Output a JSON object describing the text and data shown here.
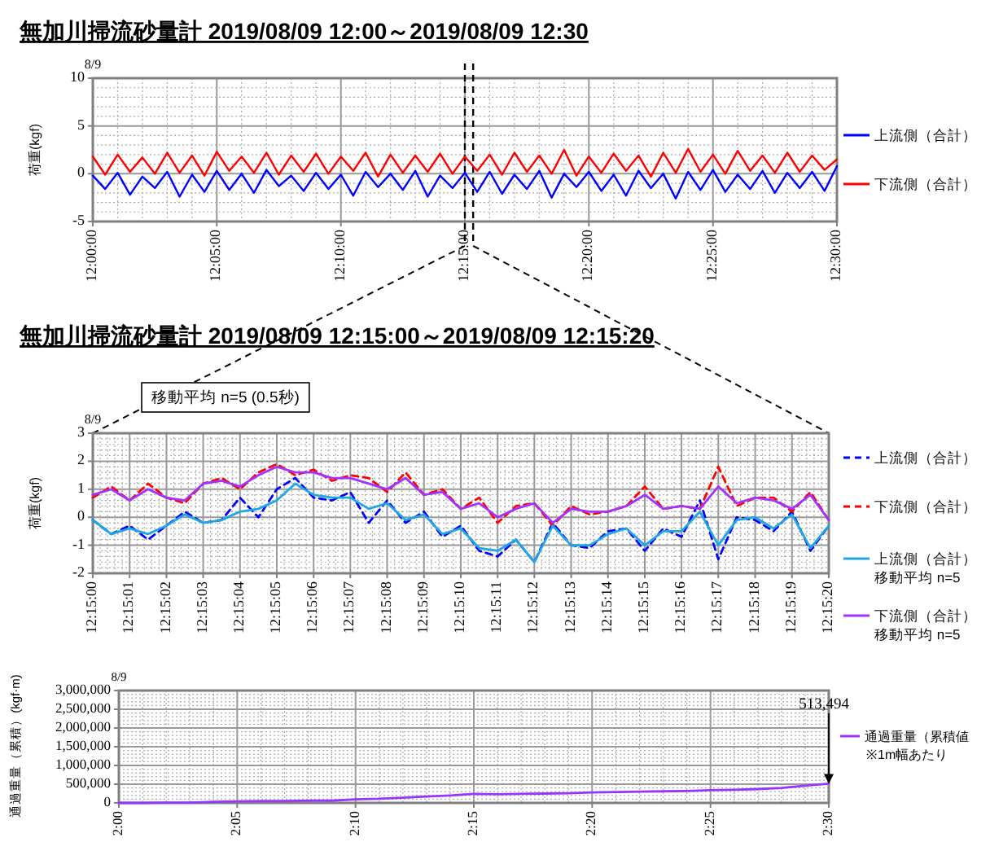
{
  "chart_data": [
    {
      "type": "line",
      "title": "無加川掃流砂量計 2019/08/09 12:00～2019/08/09 12:30",
      "ylabel": "荷重(kgf)",
      "annotations": [
        "8/9"
      ],
      "grid": true,
      "legend": "right",
      "xlim": [
        12,
        12.5
      ],
      "ylim": [
        -5,
        10
      ],
      "xticks": [
        {
          "value": 12,
          "label": "12:00:00"
        },
        {
          "value": 12.0833,
          "label": "12:05:00"
        },
        {
          "value": 12.1667,
          "label": "12:10:00"
        },
        {
          "value": 12.25,
          "label": "12:15:00"
        },
        {
          "value": 12.3333,
          "label": "12:20:00"
        },
        {
          "value": 12.4167,
          "label": "12:25:00"
        },
        {
          "value": 12.5,
          "label": "12:30:00"
        }
      ],
      "yticks": [
        -5,
        0,
        5,
        10
      ],
      "ref_lines": [
        {
          "axis": "x",
          "value": 12.25,
          "color": "#000000",
          "line_style": "dashed"
        },
        {
          "axis": "x",
          "value": 12.255556,
          "color": "#000000",
          "line_style": "dashed"
        }
      ],
      "x": [
        12,
        12.0083,
        12.0167,
        12.025,
        12.0333,
        12.0417,
        12.05,
        12.0583,
        12.0667,
        12.075,
        12.0833,
        12.0917,
        12.1,
        12.1083,
        12.1167,
        12.125,
        12.1333,
        12.1417,
        12.15,
        12.1583,
        12.1667,
        12.175,
        12.1833,
        12.1917,
        12.2,
        12.2083,
        12.2167,
        12.225,
        12.2333,
        12.2417,
        12.25,
        12.2583,
        12.2667,
        12.275,
        12.2833,
        12.2917,
        12.3,
        12.3083,
        12.3167,
        12.325,
        12.3333,
        12.3417,
        12.35,
        12.3583,
        12.3667,
        12.375,
        12.3833,
        12.3917,
        12.4,
        12.4083,
        12.4167,
        12.425,
        12.4333,
        12.4417,
        12.45,
        12.4583,
        12.4667,
        12.475,
        12.4833,
        12.4917,
        12.5
      ],
      "series": [
        {
          "name": "上流側（合計）",
          "color": "#0000ff",
          "values": [
            -0.2,
            -1.6,
            0.1,
            -2.2,
            -0.3,
            -1.5,
            0.2,
            -2.4,
            -0.1,
            -1.9,
            0.3,
            -1.7,
            0.0,
            -2.0,
            0.4,
            -1.3,
            -0.2,
            -1.8,
            0.1,
            -1.6,
            -0.1,
            -2.3,
            0.2,
            -1.4,
            0.0,
            -1.7,
            0.3,
            -2.4,
            -0.2,
            -1.5,
            0.1,
            -1.9,
            0.2,
            -2.1,
            -0.1,
            -1.6,
            0.3,
            -2.5,
            0.0,
            -1.4,
            0.2,
            -1.8,
            -0.1,
            -2.3,
            0.3,
            -1.5,
            0.0,
            -2.6,
            0.2,
            -1.7,
            0.4,
            -1.9,
            -0.1,
            -1.6,
            0.3,
            -2.0,
            0.1,
            -1.5,
            0.2,
            -1.8,
            0.8
          ]
        },
        {
          "name": "下流側（合計）",
          "color": "#ff0000",
          "values": [
            1.8,
            -0.1,
            2.0,
            0.2,
            1.7,
            0.0,
            2.2,
            0.1,
            1.9,
            -0.2,
            2.3,
            0.3,
            1.8,
            0.1,
            2.2,
            -0.1,
            1.9,
            0.2,
            2.1,
            0.0,
            1.8,
            0.3,
            2.2,
            -0.3,
            2.0,
            0.1,
            1.9,
            0.2,
            2.1,
            0.0,
            1.8,
            0.3,
            2.0,
            -0.1,
            2.2,
            0.2,
            1.9,
            0.0,
            2.5,
            -0.2,
            1.8,
            0.1,
            2.1,
            0.3,
            1.9,
            -0.3,
            2.2,
            0.1,
            2.6,
            0.2,
            2.0,
            0.0,
            2.4,
            0.3,
            1.9,
            0.1,
            2.2,
            0.2,
            1.9,
            0.4,
            1.5
          ]
        }
      ]
    },
    {
      "type": "line",
      "title": "無加川掃流砂量計 2019/08/09 12:15:00～2019/08/09 12:15:20",
      "ylabel": "荷重(kgf)",
      "annotations": [
        "8/9",
        "移動平均 n=5 (0.5秒)"
      ],
      "grid": true,
      "legend": "right",
      "xlim": [
        12.25,
        12.255556
      ],
      "ylim": [
        -2,
        3
      ],
      "xticks": [
        {
          "value": 12.25,
          "label": "12:15:00"
        },
        {
          "value": 12.250278,
          "label": "12:15:01"
        },
        {
          "value": 12.250556,
          "label": "12:15:02"
        },
        {
          "value": 12.250833,
          "label": "12:15:03"
        },
        {
          "value": 12.251111,
          "label": "12:15:04"
        },
        {
          "value": 12.251389,
          "label": "12:15:05"
        },
        {
          "value": 12.251667,
          "label": "12:15:06"
        },
        {
          "value": 12.251944,
          "label": "12:15:07"
        },
        {
          "value": 12.252222,
          "label": "12:15:08"
        },
        {
          "value": 12.2525,
          "label": "12:15:09"
        },
        {
          "value": 12.252778,
          "label": "12:15:10"
        },
        {
          "value": 12.253056,
          "label": "12:15:11"
        },
        {
          "value": 12.253333,
          "label": "12:15:12"
        },
        {
          "value": 12.253611,
          "label": "12:15:13"
        },
        {
          "value": 12.253889,
          "label": "12:15:14"
        },
        {
          "value": 12.254167,
          "label": "12:15:15"
        },
        {
          "value": 12.254444,
          "label": "12:15:16"
        },
        {
          "value": 12.254722,
          "label": "12:15:17"
        },
        {
          "value": 12.255,
          "label": "12:15:18"
        },
        {
          "value": 12.255278,
          "label": "12:15:19"
        },
        {
          "value": 12.255556,
          "label": "12:15:20"
        }
      ],
      "yticks": [
        -2,
        -1,
        0,
        1,
        2,
        3
      ],
      "x": [
        12.25,
        12.250139,
        12.250278,
        12.250417,
        12.250556,
        12.250694,
        12.250833,
        12.250972,
        12.251111,
        12.25125,
        12.251389,
        12.251528,
        12.251667,
        12.251806,
        12.251944,
        12.252083,
        12.252222,
        12.252361,
        12.2525,
        12.252639,
        12.252778,
        12.252917,
        12.253056,
        12.253194,
        12.253333,
        12.253472,
        12.253611,
        12.25375,
        12.253889,
        12.254028,
        12.254167,
        12.254306,
        12.254444,
        12.254583,
        12.254722,
        12.254861,
        12.255,
        12.255139,
        12.255278,
        12.255417,
        12.255556
      ],
      "series": [
        {
          "name": "上流側（合計）",
          "color": "#0000ff",
          "line_style": "dashed",
          "values": [
            -0.1,
            -0.6,
            -0.3,
            -0.8,
            -0.3,
            0.2,
            -0.2,
            -0.1,
            0.7,
            0.0,
            1.0,
            1.4,
            0.7,
            0.6,
            0.9,
            -0.2,
            0.6,
            -0.2,
            0.2,
            -0.7,
            -0.3,
            -1.2,
            -1.4,
            -0.8,
            -1.6,
            -0.2,
            -1.0,
            -1.1,
            -0.5,
            -0.4,
            -1.2,
            -0.4,
            -0.7,
            0.6,
            -1.5,
            0.0,
            -0.1,
            -0.5,
            0.2,
            -1.2,
            -0.3
          ]
        },
        {
          "name": "下流側（合計）",
          "color": "#ff0000",
          "line_style": "dashed",
          "values": [
            0.7,
            1.1,
            0.6,
            1.2,
            0.7,
            0.5,
            1.2,
            1.4,
            1.0,
            1.6,
            1.9,
            1.5,
            1.7,
            1.3,
            1.5,
            1.4,
            0.9,
            1.6,
            0.8,
            1.0,
            0.3,
            0.7,
            -0.2,
            0.4,
            0.5,
            -0.3,
            0.4,
            0.1,
            0.2,
            0.4,
            1.1,
            0.3,
            0.4,
            0.3,
            1.8,
            0.4,
            0.7,
            0.7,
            0.2,
            0.9,
            -0.1
          ]
        },
        {
          "name": "上流側（合計）移動平均 n=5",
          "color": "#1ea7e1",
          "line_style": "solid",
          "values": [
            -0.1,
            -0.6,
            -0.4,
            -0.6,
            -0.3,
            0.1,
            -0.2,
            -0.1,
            0.2,
            0.3,
            0.6,
            1.2,
            0.8,
            0.7,
            0.7,
            0.3,
            0.5,
            -0.1,
            0.1,
            -0.6,
            -0.4,
            -1.1,
            -1.2,
            -0.8,
            -1.6,
            -0.3,
            -1.0,
            -1.0,
            -0.6,
            -0.4,
            -1.0,
            -0.5,
            -0.5,
            0.2,
            -1.0,
            -0.1,
            0.0,
            -0.4,
            0.1,
            -1.1,
            -0.3
          ]
        },
        {
          "name": "下流側（合計）移動平均 n=5",
          "color": "#a033ff",
          "line_style": "solid",
          "values": [
            0.8,
            1.0,
            0.6,
            1.0,
            0.7,
            0.6,
            1.2,
            1.3,
            1.1,
            1.5,
            1.8,
            1.6,
            1.6,
            1.4,
            1.4,
            1.2,
            1.0,
            1.4,
            0.8,
            0.9,
            0.3,
            0.5,
            0.0,
            0.3,
            0.5,
            -0.2,
            0.3,
            0.2,
            0.2,
            0.4,
            0.8,
            0.3,
            0.4,
            0.3,
            1.1,
            0.5,
            0.7,
            0.6,
            0.3,
            0.8,
            -0.1
          ]
        }
      ]
    },
    {
      "type": "line",
      "ylabel": "通過重量（累積）(kgf·m)",
      "annotations": [
        "8/9",
        "※1m幅あたり",
        {
          "text": "513,494",
          "x": 2.5,
          "y": 513494
        }
      ],
      "grid": true,
      "legend": "right",
      "xlim": [
        2,
        2.5
      ],
      "ylim": [
        0,
        3000000
      ],
      "xticks": [
        {
          "value": 2,
          "label": "2:00"
        },
        {
          "value": 2.0833,
          "label": "2:05"
        },
        {
          "value": 2.1667,
          "label": "2:10"
        },
        {
          "value": 2.25,
          "label": "2:15"
        },
        {
          "value": 2.3333,
          "label": "2:20"
        },
        {
          "value": 2.4167,
          "label": "2:25"
        },
        {
          "value": 2.5,
          "label": "2:30"
        }
      ],
      "yticks": [
        0,
        {
          "value": 500000,
          "label": "500,000"
        },
        {
          "value": 1000000,
          "label": "1,000,000"
        },
        {
          "value": 1500000,
          "label": "1,500,000"
        },
        {
          "value": 2000000,
          "label": "2,000,000"
        },
        {
          "value": 2500000,
          "label": "2,500,000"
        },
        {
          "value": 3000000,
          "label": "3,000,000"
        }
      ],
      "x": [
        2,
        2.0167,
        2.0333,
        2.05,
        2.0667,
        2.0833,
        2.1,
        2.1167,
        2.1333,
        2.15,
        2.1667,
        2.1833,
        2.2,
        2.2167,
        2.2333,
        2.25,
        2.2667,
        2.2833,
        2.3,
        2.3167,
        2.3333,
        2.35,
        2.3667,
        2.3833,
        2.4,
        2.4167,
        2.4333,
        2.45,
        2.4667,
        2.4833,
        2.5
      ],
      "series": [
        {
          "name": "通過重量（累積値",
          "color": "#9933ff",
          "values": [
            0,
            0,
            10000,
            10000,
            30000,
            40000,
            50000,
            50000,
            60000,
            60000,
            95000,
            110000,
            140000,
            170000,
            200000,
            240000,
            230000,
            240000,
            250000,
            260000,
            280000,
            290000,
            300000,
            310000,
            320000,
            340000,
            350000,
            370000,
            400000,
            460000,
            513494
          ]
        }
      ]
    }
  ]
}
